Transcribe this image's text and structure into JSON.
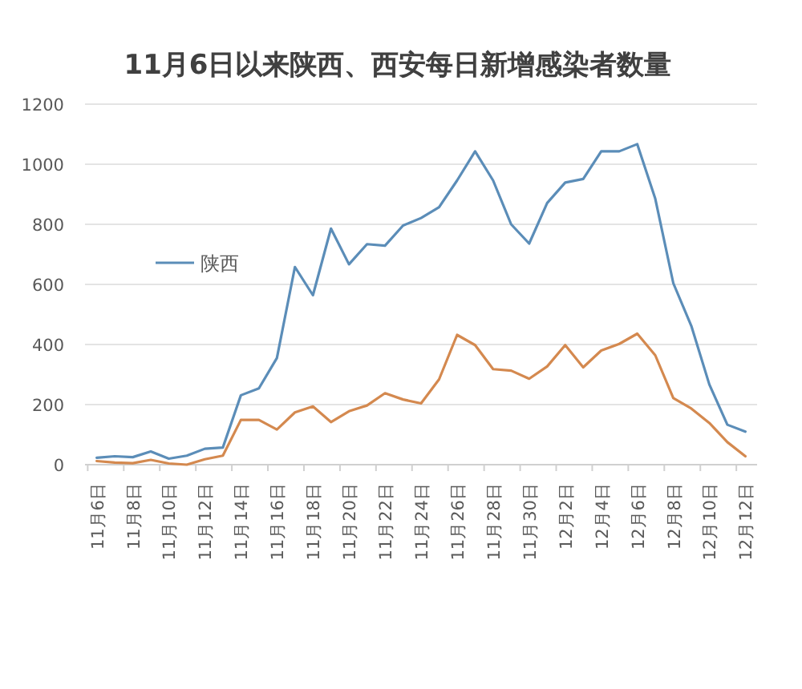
{
  "chart_data": {
    "type": "line",
    "title": "11月6日以来陕西、西安每日新增感染者数量",
    "categories": [
      "11月6日",
      null,
      "11月8日",
      null,
      "11月10日",
      null,
      "11月12日",
      null,
      "11月14日",
      null,
      "11月16日",
      null,
      "11月18日",
      null,
      "11月20日",
      null,
      "11月22日",
      null,
      "11月24日",
      null,
      "11月26日",
      null,
      "11月28日",
      null,
      "11月30日",
      null,
      "12月2日",
      null,
      "12月4日",
      null,
      "12月6日",
      null,
      "12月8日",
      null,
      "12月10日",
      null,
      "12月12日"
    ],
    "series": [
      {
        "name": "陕西",
        "color": "#5b8db8",
        "values": [
          23,
          28,
          25,
          44,
          20,
          30,
          53,
          57,
          231,
          254,
          355,
          658,
          564,
          786,
          667,
          734,
          729,
          796,
          821,
          857,
          946,
          1043,
          946,
          800,
          736,
          871,
          939,
          951,
          1043,
          1043,
          1067,
          885,
          604,
          462,
          267,
          133,
          110
        ]
      },
      {
        "color": "#d4894f",
        "values": [
          12,
          7,
          5,
          16,
          4,
          0,
          18,
          30,
          149,
          149,
          117,
          174,
          194,
          142,
          178,
          197,
          238,
          217,
          204,
          284,
          432,
          398,
          318,
          313,
          286,
          327,
          398,
          324,
          380,
          402,
          436,
          364,
          222,
          187,
          139,
          75,
          28
        ]
      }
    ],
    "ylim": [
      0,
      1200
    ],
    "yticks": [
      0,
      200,
      400,
      600,
      800,
      1000,
      1200
    ],
    "grid": "y",
    "legend": "left"
  }
}
